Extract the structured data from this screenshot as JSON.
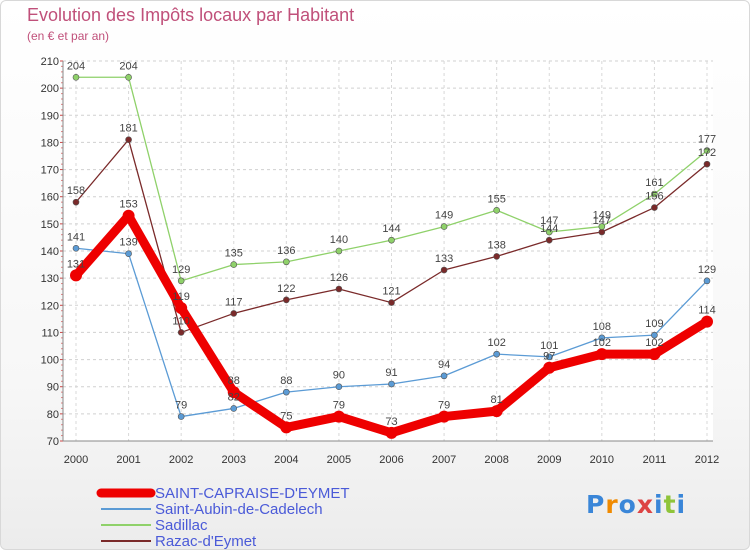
{
  "chart_data": {
    "type": "line",
    "title": "Evolution des Impôts locaux par Habitant",
    "subtitle": "(en € et par an)",
    "categories": [
      "2000",
      "2001",
      "2002",
      "2003",
      "2004",
      "2005",
      "2006",
      "2007",
      "2008",
      "2009",
      "2010",
      "2011",
      "2012"
    ],
    "ylim": [
      70,
      210
    ],
    "yticks": [
      70,
      80,
      90,
      100,
      110,
      120,
      130,
      140,
      150,
      160,
      170,
      180,
      190,
      200,
      210
    ],
    "grid": true,
    "legend_position": "bottom-left",
    "series": [
      {
        "name": "SAINT-CAPRAISE-D'EYMET",
        "color": "#ee0000",
        "values": [
          131,
          153,
          119,
          88,
          75,
          79,
          73,
          79,
          81,
          97,
          102,
          102,
          114
        ]
      },
      {
        "name": "Saint-Aubin-de-Cadelech",
        "color": "#5b9bd5",
        "values": [
          141,
          139,
          79,
          82,
          88,
          90,
          91,
          94,
          102,
          101,
          108,
          109,
          129
        ]
      },
      {
        "name": "Sadillac",
        "color": "#8fd16a",
        "values": [
          204,
          204,
          129,
          135,
          136,
          140,
          144,
          149,
          155,
          147,
          149,
          161,
          177
        ]
      },
      {
        "name": "Razac-d'Eymet",
        "color": "#7a2a2a",
        "values": [
          158,
          181,
          110,
          117,
          122,
          126,
          121,
          133,
          138,
          144,
          147,
          156,
          172
        ]
      }
    ]
  },
  "logo": {
    "text": "Proxiti",
    "colors": [
      "#3a86d8",
      "#f08a00",
      "#3a86d8",
      "#d44",
      "#3a86d8",
      "#8fc43a",
      "#3a86d8"
    ]
  }
}
